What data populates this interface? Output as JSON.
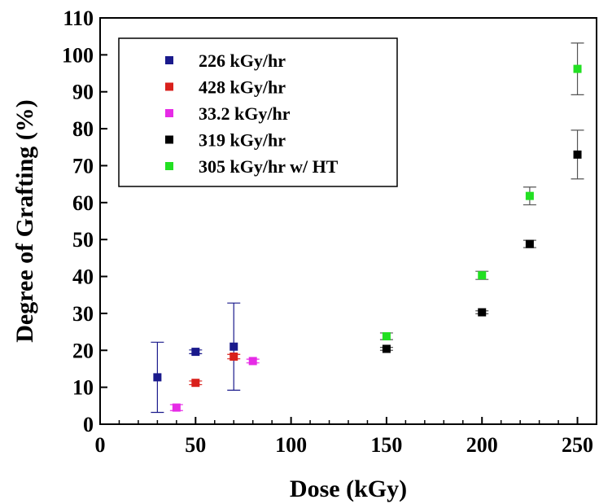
{
  "chart_data": {
    "type": "scatter",
    "xlabel": "Dose (kGy)",
    "ylabel": "Degree of Grafting (%)",
    "xlim": [
      0,
      260
    ],
    "ylim": [
      0,
      110
    ],
    "x_ticks": [
      0,
      50,
      100,
      150,
      200,
      250
    ],
    "y_ticks": [
      0,
      10,
      20,
      30,
      40,
      50,
      60,
      70,
      80,
      90,
      100,
      110
    ],
    "legend_position": "top-left",
    "grid": false,
    "series": [
      {
        "name": "226 kGy/hr",
        "color": "#1a1a8c",
        "points": [
          {
            "x": 30,
            "y": 12.7,
            "err": 9.5
          },
          {
            "x": 50,
            "y": 19.6,
            "err": 0.5
          },
          {
            "x": 70,
            "y": 21.0,
            "err": 11.8
          }
        ]
      },
      {
        "name": "428 kGy/hr",
        "color": "#d9211c",
        "points": [
          {
            "x": 50,
            "y": 11.2,
            "err": 0.5
          },
          {
            "x": 70,
            "y": 18.3,
            "err": 0.6
          }
        ]
      },
      {
        "name": "33.2 kGy/hr",
        "color": "#e62be6",
        "points": [
          {
            "x": 40,
            "y": 4.5,
            "err": 0.8
          },
          {
            "x": 80,
            "y": 17.1,
            "err": 0.5
          }
        ]
      },
      {
        "name": "319 kGy/hr",
        "color": "#000000",
        "points": [
          {
            "x": 150,
            "y": 20.4,
            "err": 0.4
          },
          {
            "x": 200,
            "y": 30.3,
            "err": 0.4
          },
          {
            "x": 225,
            "y": 48.8,
            "err": 1.0
          },
          {
            "x": 250,
            "y": 73.0,
            "err": 6.6
          }
        ]
      },
      {
        "name": "305 kGy/hr w/ HT",
        "color": "#22e022",
        "points": [
          {
            "x": 150,
            "y": 23.8,
            "err": 0.9
          },
          {
            "x": 200,
            "y": 40.3,
            "err": 1.1
          },
          {
            "x": 225,
            "y": 61.8,
            "err": 2.4
          },
          {
            "x": 250,
            "y": 96.2,
            "err": 7.0
          }
        ]
      }
    ]
  }
}
